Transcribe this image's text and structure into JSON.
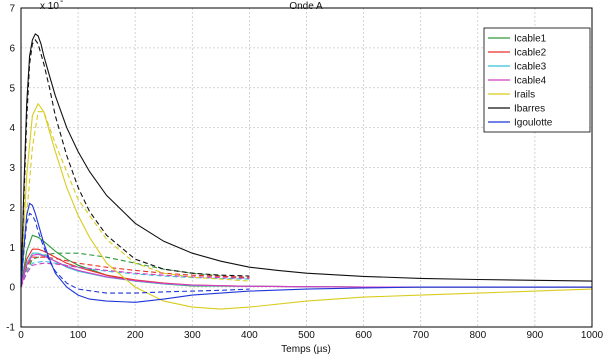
{
  "chart_data": {
    "type": "line",
    "title": "Onde A",
    "xlabel": "Temps (µs)",
    "ylabel": "",
    "y_exponent_label": "x 10",
    "xlim": [
      0,
      1000
    ],
    "ylim": [
      -1,
      7
    ],
    "xticks": [
      "0",
      "100",
      "200",
      "300",
      "400",
      "500",
      "600",
      "700",
      "800",
      "900",
      "1000"
    ],
    "yticks": [
      "-1",
      "0",
      "1",
      "2",
      "3",
      "4",
      "5",
      "6",
      "7"
    ],
    "grid": true,
    "legend_position": "top-right",
    "series": [
      {
        "name": "Icable1",
        "color": "#2e9a3c",
        "style": "solid",
        "x": [
          0,
          10,
          20,
          30,
          40,
          60,
          80,
          100,
          150,
          200,
          250,
          300,
          400,
          500,
          600,
          800,
          1000
        ],
        "y": [
          0,
          0.9,
          1.3,
          1.25,
          1.15,
          0.9,
          0.7,
          0.55,
          0.3,
          0.15,
          0.08,
          0.03,
          0.02,
          0.01,
          0,
          0,
          0
        ]
      },
      {
        "name": "Icable1",
        "color": "#2e9a3c",
        "style": "dashed",
        "x": [
          0,
          10,
          20,
          40,
          60,
          100,
          150,
          200,
          250,
          300,
          350,
          400
        ],
        "y": [
          0,
          0.4,
          0.7,
          0.8,
          0.85,
          0.85,
          0.75,
          0.6,
          0.45,
          0.35,
          0.28,
          0.22
        ]
      },
      {
        "name": "Icable2",
        "color": "#e8302a",
        "style": "solid",
        "x": [
          0,
          10,
          20,
          30,
          40,
          60,
          80,
          100,
          150,
          200,
          250,
          300,
          400,
          500,
          600,
          800,
          1000
        ],
        "y": [
          0,
          0.7,
          0.95,
          0.95,
          0.9,
          0.75,
          0.6,
          0.5,
          0.3,
          0.18,
          0.1,
          0.05,
          0.02,
          0.01,
          0,
          0,
          0
        ]
      },
      {
        "name": "Icable2",
        "color": "#e8302a",
        "style": "dashed",
        "x": [
          0,
          10,
          20,
          40,
          60,
          100,
          150,
          200,
          250,
          300,
          350,
          400
        ],
        "y": [
          0,
          0.5,
          0.75,
          0.75,
          0.72,
          0.6,
          0.5,
          0.42,
          0.35,
          0.3,
          0.27,
          0.25
        ]
      },
      {
        "name": "Icable3",
        "color": "#35c4d6",
        "style": "solid",
        "x": [
          0,
          10,
          20,
          30,
          40,
          60,
          80,
          100,
          150,
          200,
          250,
          300,
          400,
          500,
          600,
          800,
          1000
        ],
        "y": [
          0,
          0.6,
          0.85,
          0.85,
          0.8,
          0.65,
          0.5,
          0.4,
          0.25,
          0.15,
          0.08,
          0.04,
          0.02,
          0.01,
          0,
          0,
          0
        ]
      },
      {
        "name": "Icable3",
        "color": "#35c4d6",
        "style": "dashed",
        "x": [
          0,
          10,
          20,
          40,
          60,
          100,
          150,
          200,
          250,
          300,
          350,
          400
        ],
        "y": [
          0,
          0.4,
          0.6,
          0.65,
          0.6,
          0.5,
          0.4,
          0.33,
          0.28,
          0.24,
          0.22,
          0.2
        ]
      },
      {
        "name": "Icable4",
        "color": "#d53cc4",
        "style": "solid",
        "x": [
          0,
          10,
          20,
          30,
          40,
          60,
          80,
          100,
          150,
          200,
          250,
          300,
          400,
          500,
          600,
          800,
          1000
        ],
        "y": [
          0,
          0.55,
          0.8,
          0.82,
          0.78,
          0.65,
          0.52,
          0.42,
          0.26,
          0.16,
          0.09,
          0.05,
          0.02,
          0.01,
          0,
          0,
          0
        ]
      },
      {
        "name": "Icable4",
        "color": "#d53cc4",
        "style": "dashed",
        "x": [
          0,
          10,
          20,
          40,
          60,
          100,
          150,
          200,
          250,
          300,
          350,
          400
        ],
        "y": [
          0,
          0.35,
          0.55,
          0.6,
          0.58,
          0.5,
          0.42,
          0.35,
          0.3,
          0.26,
          0.24,
          0.22
        ]
      },
      {
        "name": "Irails",
        "color": "#d9cc1e",
        "style": "solid",
        "x": [
          0,
          5,
          10,
          20,
          30,
          40,
          50,
          60,
          80,
          100,
          120,
          150,
          200,
          250,
          300,
          350,
          400,
          500,
          600,
          700,
          800,
          900,
          1000
        ],
        "y": [
          0,
          1.5,
          2.8,
          4.3,
          4.6,
          4.4,
          3.9,
          3.4,
          2.5,
          1.8,
          1.25,
          0.6,
          0.0,
          -0.35,
          -0.5,
          -0.55,
          -0.5,
          -0.35,
          -0.25,
          -0.2,
          -0.15,
          -0.1,
          -0.05
        ]
      },
      {
        "name": "Irails",
        "color": "#d9cc1e",
        "style": "dashed",
        "x": [
          0,
          10,
          20,
          30,
          40,
          50,
          60,
          80,
          100,
          150,
          200,
          250,
          300,
          350,
          400
        ],
        "y": [
          0,
          1.8,
          3.5,
          4.4,
          4.4,
          4.0,
          3.6,
          2.9,
          2.2,
          1.2,
          0.6,
          0.35,
          0.25,
          0.2,
          0.15
        ]
      },
      {
        "name": "Ibarres",
        "color": "#111111",
        "style": "solid",
        "x": [
          0,
          5,
          10,
          15,
          20,
          25,
          30,
          35,
          40,
          50,
          60,
          80,
          100,
          120,
          150,
          200,
          250,
          300,
          350,
          400,
          450,
          500,
          600,
          700,
          800,
          900,
          1000
        ],
        "y": [
          0,
          2.5,
          4.6,
          5.8,
          6.2,
          6.35,
          6.3,
          6.1,
          5.8,
          5.3,
          4.8,
          4.0,
          3.4,
          2.9,
          2.3,
          1.6,
          1.15,
          0.85,
          0.65,
          0.5,
          0.42,
          0.35,
          0.27,
          0.22,
          0.19,
          0.17,
          0.15
        ]
      },
      {
        "name": "Ibarres",
        "color": "#111111",
        "style": "dashed",
        "x": [
          0,
          5,
          10,
          15,
          20,
          25,
          30,
          40,
          50,
          60,
          80,
          100,
          120,
          150,
          200,
          250,
          300,
          350,
          400
        ],
        "y": [
          0,
          2.2,
          4.2,
          5.6,
          6.1,
          6.2,
          6.1,
          5.6,
          5.0,
          4.3,
          3.3,
          2.5,
          1.9,
          1.3,
          0.7,
          0.45,
          0.35,
          0.3,
          0.28
        ]
      },
      {
        "name": "Igoulotte",
        "color": "#1f36d8",
        "style": "solid",
        "x": [
          0,
          5,
          10,
          15,
          20,
          25,
          30,
          40,
          50,
          60,
          80,
          100,
          120,
          150,
          200,
          250,
          300,
          400,
          500,
          600,
          700,
          800,
          900,
          1000
        ],
        "y": [
          0,
          1.0,
          1.8,
          2.1,
          2.05,
          1.85,
          1.6,
          1.1,
          0.7,
          0.35,
          0.0,
          -0.2,
          -0.3,
          -0.35,
          -0.38,
          -0.3,
          -0.2,
          -0.1,
          -0.05,
          -0.02,
          0,
          0,
          0,
          0
        ]
      },
      {
        "name": "Igoulotte",
        "color": "#1f36d8",
        "style": "dashed",
        "x": [
          0,
          5,
          10,
          15,
          20,
          25,
          30,
          40,
          50,
          60,
          80,
          100,
          150,
          200,
          250,
          300,
          350,
          400
        ],
        "y": [
          0,
          0.9,
          1.6,
          1.85,
          1.8,
          1.65,
          1.4,
          1.0,
          0.65,
          0.4,
          0.1,
          -0.05,
          -0.15,
          -0.15,
          -0.12,
          -0.1,
          -0.08,
          -0.05
        ]
      }
    ],
    "legend": [
      {
        "label": "Icable1",
        "color": "#2e9a3c"
      },
      {
        "label": "Icable2",
        "color": "#e8302a"
      },
      {
        "label": "Icable3",
        "color": "#35c4d6"
      },
      {
        "label": "Icable4",
        "color": "#d53cc4"
      },
      {
        "label": "Irails",
        "color": "#d9cc1e"
      },
      {
        "label": "Ibarres",
        "color": "#111111"
      },
      {
        "label": "Igoulotte",
        "color": "#1f36d8"
      }
    ]
  }
}
